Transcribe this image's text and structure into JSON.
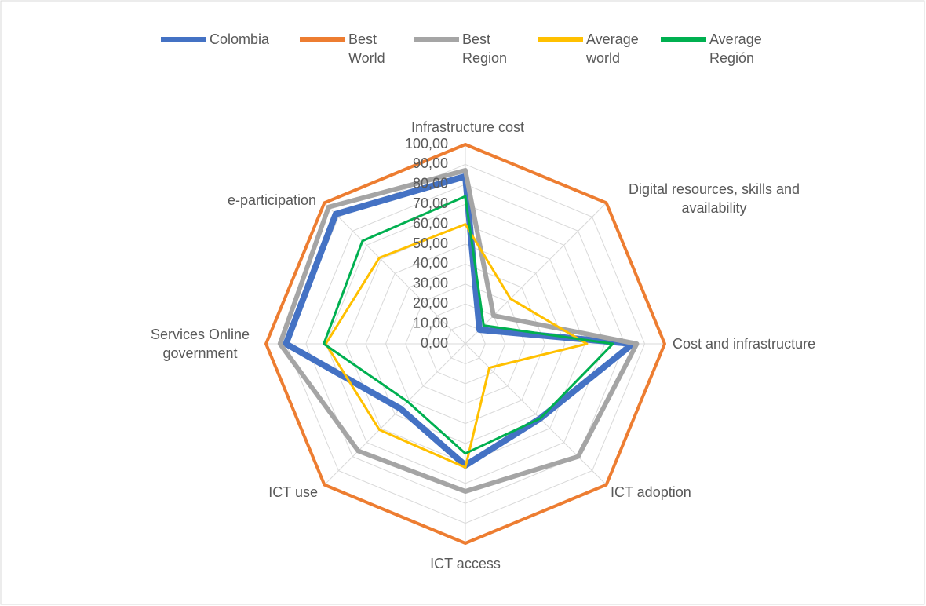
{
  "chart_data": {
    "type": "radar",
    "categories": [
      "Infrastructure cost",
      "Digital resources, skills and availability",
      "Cost and infrastructure",
      "ICT adoption",
      "ICT access",
      "ICT use",
      "Services Online government",
      "e-participation"
    ],
    "series": [
      {
        "name": "Colombia",
        "color": "#4472c4",
        "values": [
          84,
          10,
          84,
          53,
          61,
          46,
          90,
          92
        ]
      },
      {
        "name": "Best World",
        "color": "#ed7d31",
        "values": [
          100,
          100,
          100,
          100,
          100,
          100,
          100,
          100
        ]
      },
      {
        "name": "Best Region",
        "color": "#a5a5a5",
        "values": [
          87,
          20,
          86,
          80,
          74,
          76,
          93,
          97
        ]
      },
      {
        "name": "Average world",
        "color": "#ffc000",
        "values": [
          60,
          32,
          61,
          17,
          62,
          61,
          70,
          61
        ]
      },
      {
        "name": "Average Región",
        "color": "#00b050",
        "values": [
          74,
          13,
          74,
          53,
          55,
          41,
          71,
          73
        ]
      }
    ],
    "ylim": [
      0,
      100
    ],
    "yticks": [
      {
        "value": 0,
        "label": "0,00"
      },
      {
        "value": 10,
        "label": "10,00"
      },
      {
        "value": 20,
        "label": "20,00"
      },
      {
        "value": 30,
        "label": "30,00"
      },
      {
        "value": 40,
        "label": "40,00"
      },
      {
        "value": 50,
        "label": "50,00"
      },
      {
        "value": 60,
        "label": "60,00"
      },
      {
        "value": 70,
        "label": "70,00"
      },
      {
        "value": 80,
        "label": "80,00"
      },
      {
        "value": 90,
        "label": "90,00"
      },
      {
        "value": 100,
        "label": "100,00"
      }
    ],
    "grid": true,
    "legend": "top"
  }
}
